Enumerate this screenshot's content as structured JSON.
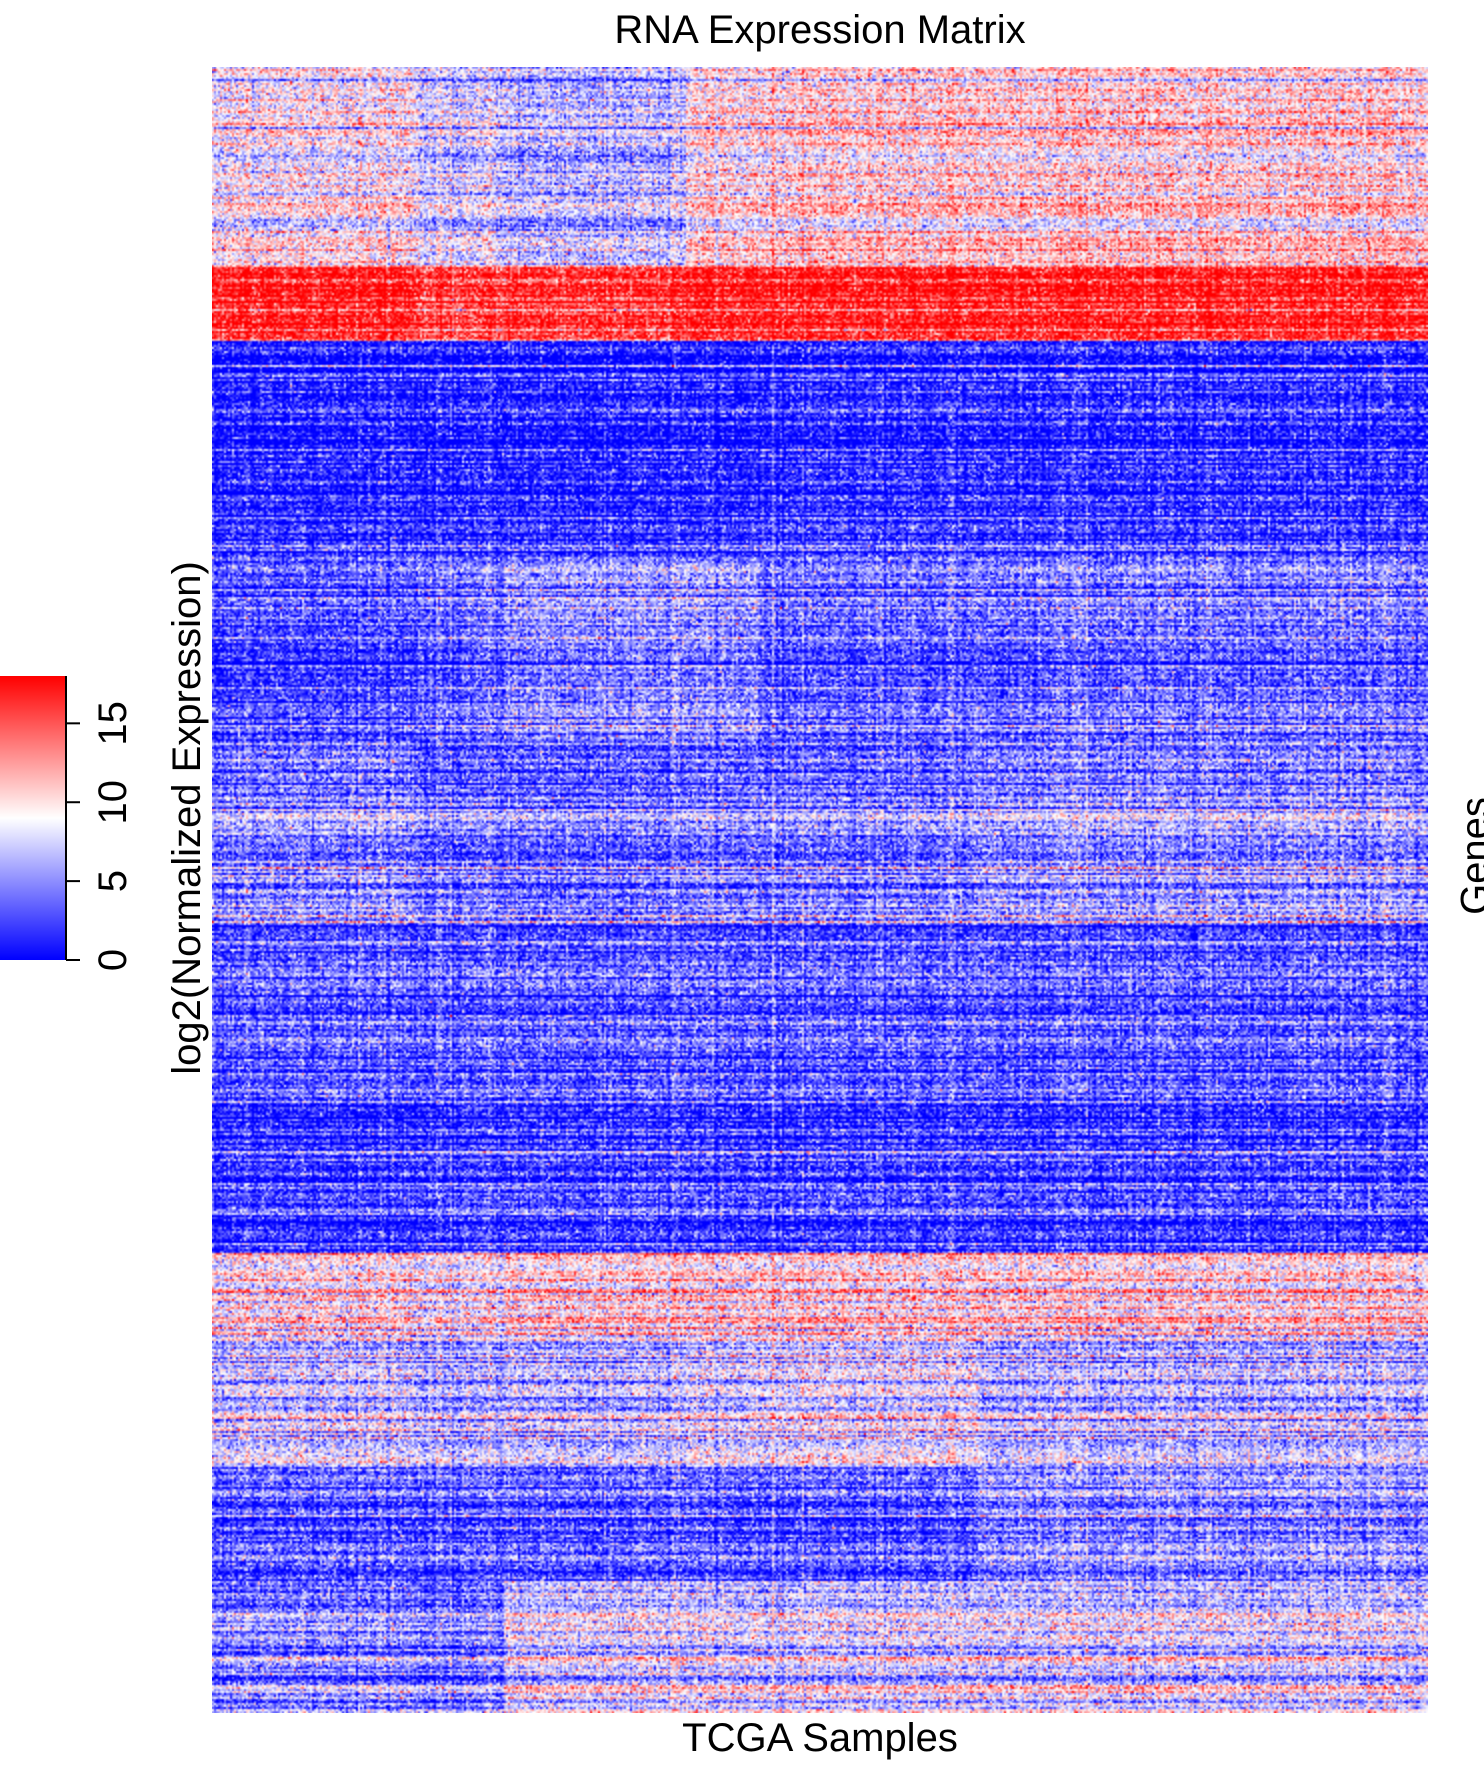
{
  "chart_data": {
    "type": "heatmap",
    "title": "RNA Expression Matrix",
    "xlabel": "TCGA Samples",
    "ylabel": "Genes",
    "colorbar": {
      "label": "log2(Normalized Expression)",
      "ticks": [
        0,
        5,
        10,
        15
      ],
      "tick_labels": [
        "0",
        "5",
        "10",
        "15"
      ],
      "range": [
        0,
        18
      ],
      "colors": {
        "low": "#0000ff",
        "mid": "#ffffff",
        "high": "#ff0000"
      }
    },
    "sample_groups": [
      0,
      0.17,
      0.24,
      0.39,
      0.45,
      0.63,
      0.68,
      1.0
    ],
    "gene_blocks": [
      {
        "end": 0.12,
        "means": [
          9.2,
          7.5,
          6.6,
          10.0,
          10.6,
          10.6,
          10.6,
          11.0
        ]
      },
      {
        "end": 0.167,
        "means": [
          16.5,
          15.0,
          15.5,
          16.5,
          16.5,
          16.5,
          16.5,
          6.5
        ]
      },
      {
        "end": 0.3,
        "means": [
          1.5,
          1.5,
          1.5,
          1.5,
          2.0,
          2.0,
          2.0,
          2.0
        ]
      },
      {
        "end": 0.41,
        "means": [
          2.5,
          3.5,
          5.0,
          5.0,
          3.5,
          3.5,
          4.0,
          2.0
        ]
      },
      {
        "end": 0.52,
        "means": [
          5.0,
          4.0,
          4.0,
          4.5,
          4.5,
          5.5,
          5.5,
          1.5
        ]
      },
      {
        "end": 0.63,
        "means": [
          3.0,
          3.0,
          3.0,
          3.0,
          3.0,
          3.0,
          3.0,
          2.0
        ]
      },
      {
        "end": 0.72,
        "means": [
          2.0,
          2.5,
          2.5,
          2.5,
          2.5,
          2.5,
          2.5,
          1.5
        ]
      },
      {
        "end": 0.77,
        "means": [
          10.0,
          9.0,
          10.5,
          10.5,
          10.5,
          10.5,
          10.5,
          6.5
        ]
      },
      {
        "end": 0.85,
        "means": [
          7.0,
          6.0,
          6.5,
          7.5,
          8.0,
          6.5,
          6.5,
          3.0
        ]
      },
      {
        "end": 0.92,
        "means": [
          3.0,
          3.0,
          3.0,
          3.0,
          3.0,
          5.0,
          5.0,
          5.5
        ]
      },
      {
        "end": 1.0,
        "means": [
          5.0,
          4.5,
          8.0,
          8.0,
          8.0,
          8.0,
          8.0,
          7.5
        ]
      }
    ],
    "grid": false,
    "legend": "left"
  }
}
